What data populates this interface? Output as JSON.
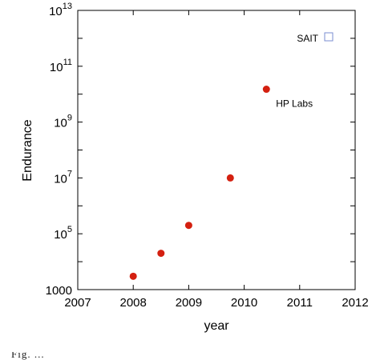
{
  "chart_data": {
    "type": "scatter",
    "title": "",
    "xlabel": "year",
    "ylabel": "Endurance",
    "xlim": [
      2007,
      2012
    ],
    "ylim": [
      1000,
      10000000000000
    ],
    "yscale": "log",
    "grid": false,
    "x_ticks": [
      "2007",
      "2008",
      "2009",
      "2010",
      "2011",
      "2012"
    ],
    "y_ticks": [
      {
        "value": 1000,
        "base": "1000",
        "exp": ""
      },
      {
        "value": 100000,
        "base": "10",
        "exp": "5"
      },
      {
        "value": 10000000,
        "base": "10",
        "exp": "7"
      },
      {
        "value": 1000000000,
        "base": "10",
        "exp": "9"
      },
      {
        "value": 100000000000,
        "base": "10",
        "exp": "11"
      },
      {
        "value": 10000000000000,
        "base": "10",
        "exp": "13"
      }
    ],
    "series": [
      {
        "color": "#d42010",
        "marker": "circle",
        "points": [
          {
            "x": 2008.0,
            "y": 3000
          },
          {
            "x": 2008.5,
            "y": 20000
          },
          {
            "x": 2009.0,
            "y": 200000
          },
          {
            "x": 2009.75,
            "y": 10000000
          },
          {
            "x": 2010.4,
            "y": 15000000000
          }
        ]
      }
    ],
    "legend": {
      "label": "SAIT",
      "marker": "open-square",
      "color": "#7a8ed0",
      "placement": "top-right"
    },
    "annotations": [
      {
        "text": "HP Labs",
        "x": 2010.4,
        "y": 15000000000
      }
    ]
  },
  "caption_fragment": "Fig. ..."
}
